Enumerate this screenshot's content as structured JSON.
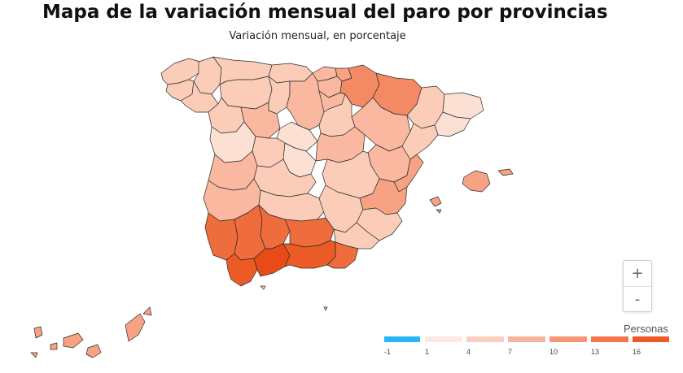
{
  "header": {
    "title": "Mapa de la variación mensual del paro por provincias",
    "subtitle": "Variación mensual, en porcentaje"
  },
  "zoom": {
    "in_label": "+",
    "out_label": "-"
  },
  "legend": {
    "title": "Personas",
    "stops": [
      "-1",
      "1",
      "4",
      "7",
      "10",
      "13",
      "16"
    ],
    "colors": [
      "#29b6f6",
      "#fde9e2",
      "#fbd0c0",
      "#f8b49a",
      "#f69675",
      "#f3764d",
      "#ee5a24"
    ]
  },
  "colors": {
    "c1": "#fde0d4",
    "c2": "#fbcdb9",
    "c3": "#f9b89f",
    "c4": "#f6a283",
    "c5": "#f38a63",
    "c6": "#ef6c3c",
    "c7": "#ec5a25",
    "c8": "#e84a18"
  }
}
